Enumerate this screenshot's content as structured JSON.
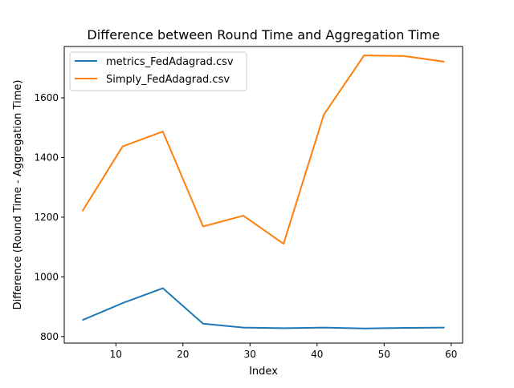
{
  "chart_data": {
    "type": "line",
    "title": "Difference between Round Time and Aggregation Time",
    "xlabel": "Index",
    "ylabel": "Difference (Round Time - Aggregation Time)",
    "xlim": [
      2.3,
      61.7
    ],
    "ylim": [
      778,
      1772
    ],
    "x_ticks": [
      10,
      20,
      30,
      40,
      50,
      60
    ],
    "y_ticks": [
      800,
      1000,
      1200,
      1400,
      1600
    ],
    "grid": false,
    "legend_position": "upper-left",
    "series": [
      {
        "name": "metrics_FedAdagrad.csv",
        "color": "#1f77b4",
        "x": [
          5,
          11,
          17,
          23,
          29,
          35,
          41,
          47,
          53,
          59
        ],
        "values": [
          855,
          912,
          962,
          843,
          830,
          828,
          830,
          827,
          829,
          830
        ]
      },
      {
        "name": "Simply_FedAdagrad.csv",
        "color": "#ff7f0e",
        "x": [
          5,
          11,
          17,
          23,
          29,
          35,
          41,
          47,
          53,
          59
        ],
        "values": [
          1220,
          1437,
          1487,
          1169,
          1205,
          1111,
          1543,
          1742,
          1740,
          1721
        ]
      }
    ]
  }
}
